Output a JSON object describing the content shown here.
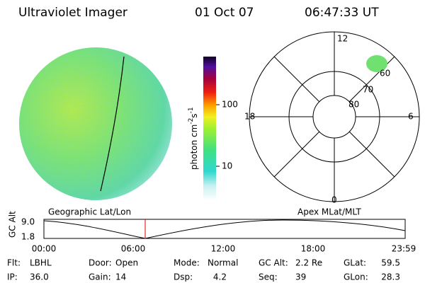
{
  "header": {
    "title": "Ultraviolet Imager",
    "date": "01 Oct 07",
    "time": "06:47:33 UT"
  },
  "colorbar": {
    "unit": "photon cm",
    "exp1": "-2",
    "unit2": "s",
    "exp2": "-1",
    "ticks": [
      "100",
      "10"
    ]
  },
  "polar": {
    "hours": [
      "12",
      "18",
      "6",
      "0"
    ],
    "latitudes": [
      "80",
      "70",
      "60"
    ]
  },
  "timeline": {
    "axis_label": "GC Alt",
    "y_labels": [
      "9.0",
      "1.8"
    ],
    "left_title": "Geographic Lat/Lon",
    "right_title": "Apex MLat/MLT",
    "times": [
      "00:00",
      "06:00",
      "12:00",
      "18:00",
      "23:59"
    ]
  },
  "footer": {
    "rows": [
      [
        {
          "label": "Flt:",
          "value": "LBHL"
        },
        {
          "label": "Door:",
          "value": "Open"
        },
        {
          "label": "Mode:",
          "value": "Normal"
        },
        {
          "label": "GC Alt:",
          "value": "2.2 Re"
        },
        {
          "label": "GLat:",
          "value": "59.5"
        }
      ],
      [
        {
          "label": "IP:",
          "value": "36.0"
        },
        {
          "label": "Gain:",
          "value": "14"
        },
        {
          "label": "Dsp:",
          "value": "4.2"
        },
        {
          "label": "Seq:",
          "value": "39"
        },
        {
          "label": "GLon:",
          "value": "28.3"
        }
      ]
    ]
  }
}
